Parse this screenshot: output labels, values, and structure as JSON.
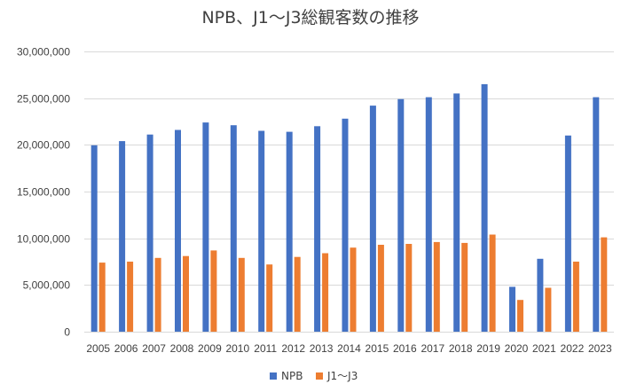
{
  "colors": {
    "npb": "#4472C4",
    "j": "#ED7D31",
    "grid": "#D9D9D9",
    "text": "#404040"
  },
  "chart_data": {
    "type": "bar",
    "title": "NPB、J1〜J3総観客数の推移",
    "xlabel": "",
    "ylabel": "",
    "ylim": [
      0,
      30000000
    ],
    "ytick_values": [
      0,
      5000000,
      10000000,
      15000000,
      20000000,
      25000000,
      30000000
    ],
    "ytick_labels": [
      "0",
      "5,000,000",
      "10,000,000",
      "15,000,000",
      "20,000,000",
      "25,000,000",
      "30,000,000"
    ],
    "categories": [
      "2005",
      "2006",
      "2007",
      "2008",
      "2009",
      "2010",
      "2011",
      "2012",
      "2013",
      "2014",
      "2015",
      "2016",
      "2017",
      "2018",
      "2019",
      "2020",
      "2021",
      "2022",
      "2023"
    ],
    "grid": true,
    "legend_position": "bottom",
    "series": [
      {
        "name": "NPB",
        "values": [
          19960000,
          20400000,
          21100000,
          21600000,
          22400000,
          22100000,
          21500000,
          21400000,
          22000000,
          22800000,
          24200000,
          24900000,
          25100000,
          25500000,
          26500000,
          4800000,
          7800000,
          21000000,
          25100000
        ]
      },
      {
        "name": "J1〜J3",
        "values": [
          7400000,
          7500000,
          7900000,
          8100000,
          8700000,
          7900000,
          7200000,
          8000000,
          8400000,
          9000000,
          9300000,
          9400000,
          9600000,
          9500000,
          10400000,
          3400000,
          4700000,
          7500000,
          10100000
        ]
      }
    ]
  }
}
